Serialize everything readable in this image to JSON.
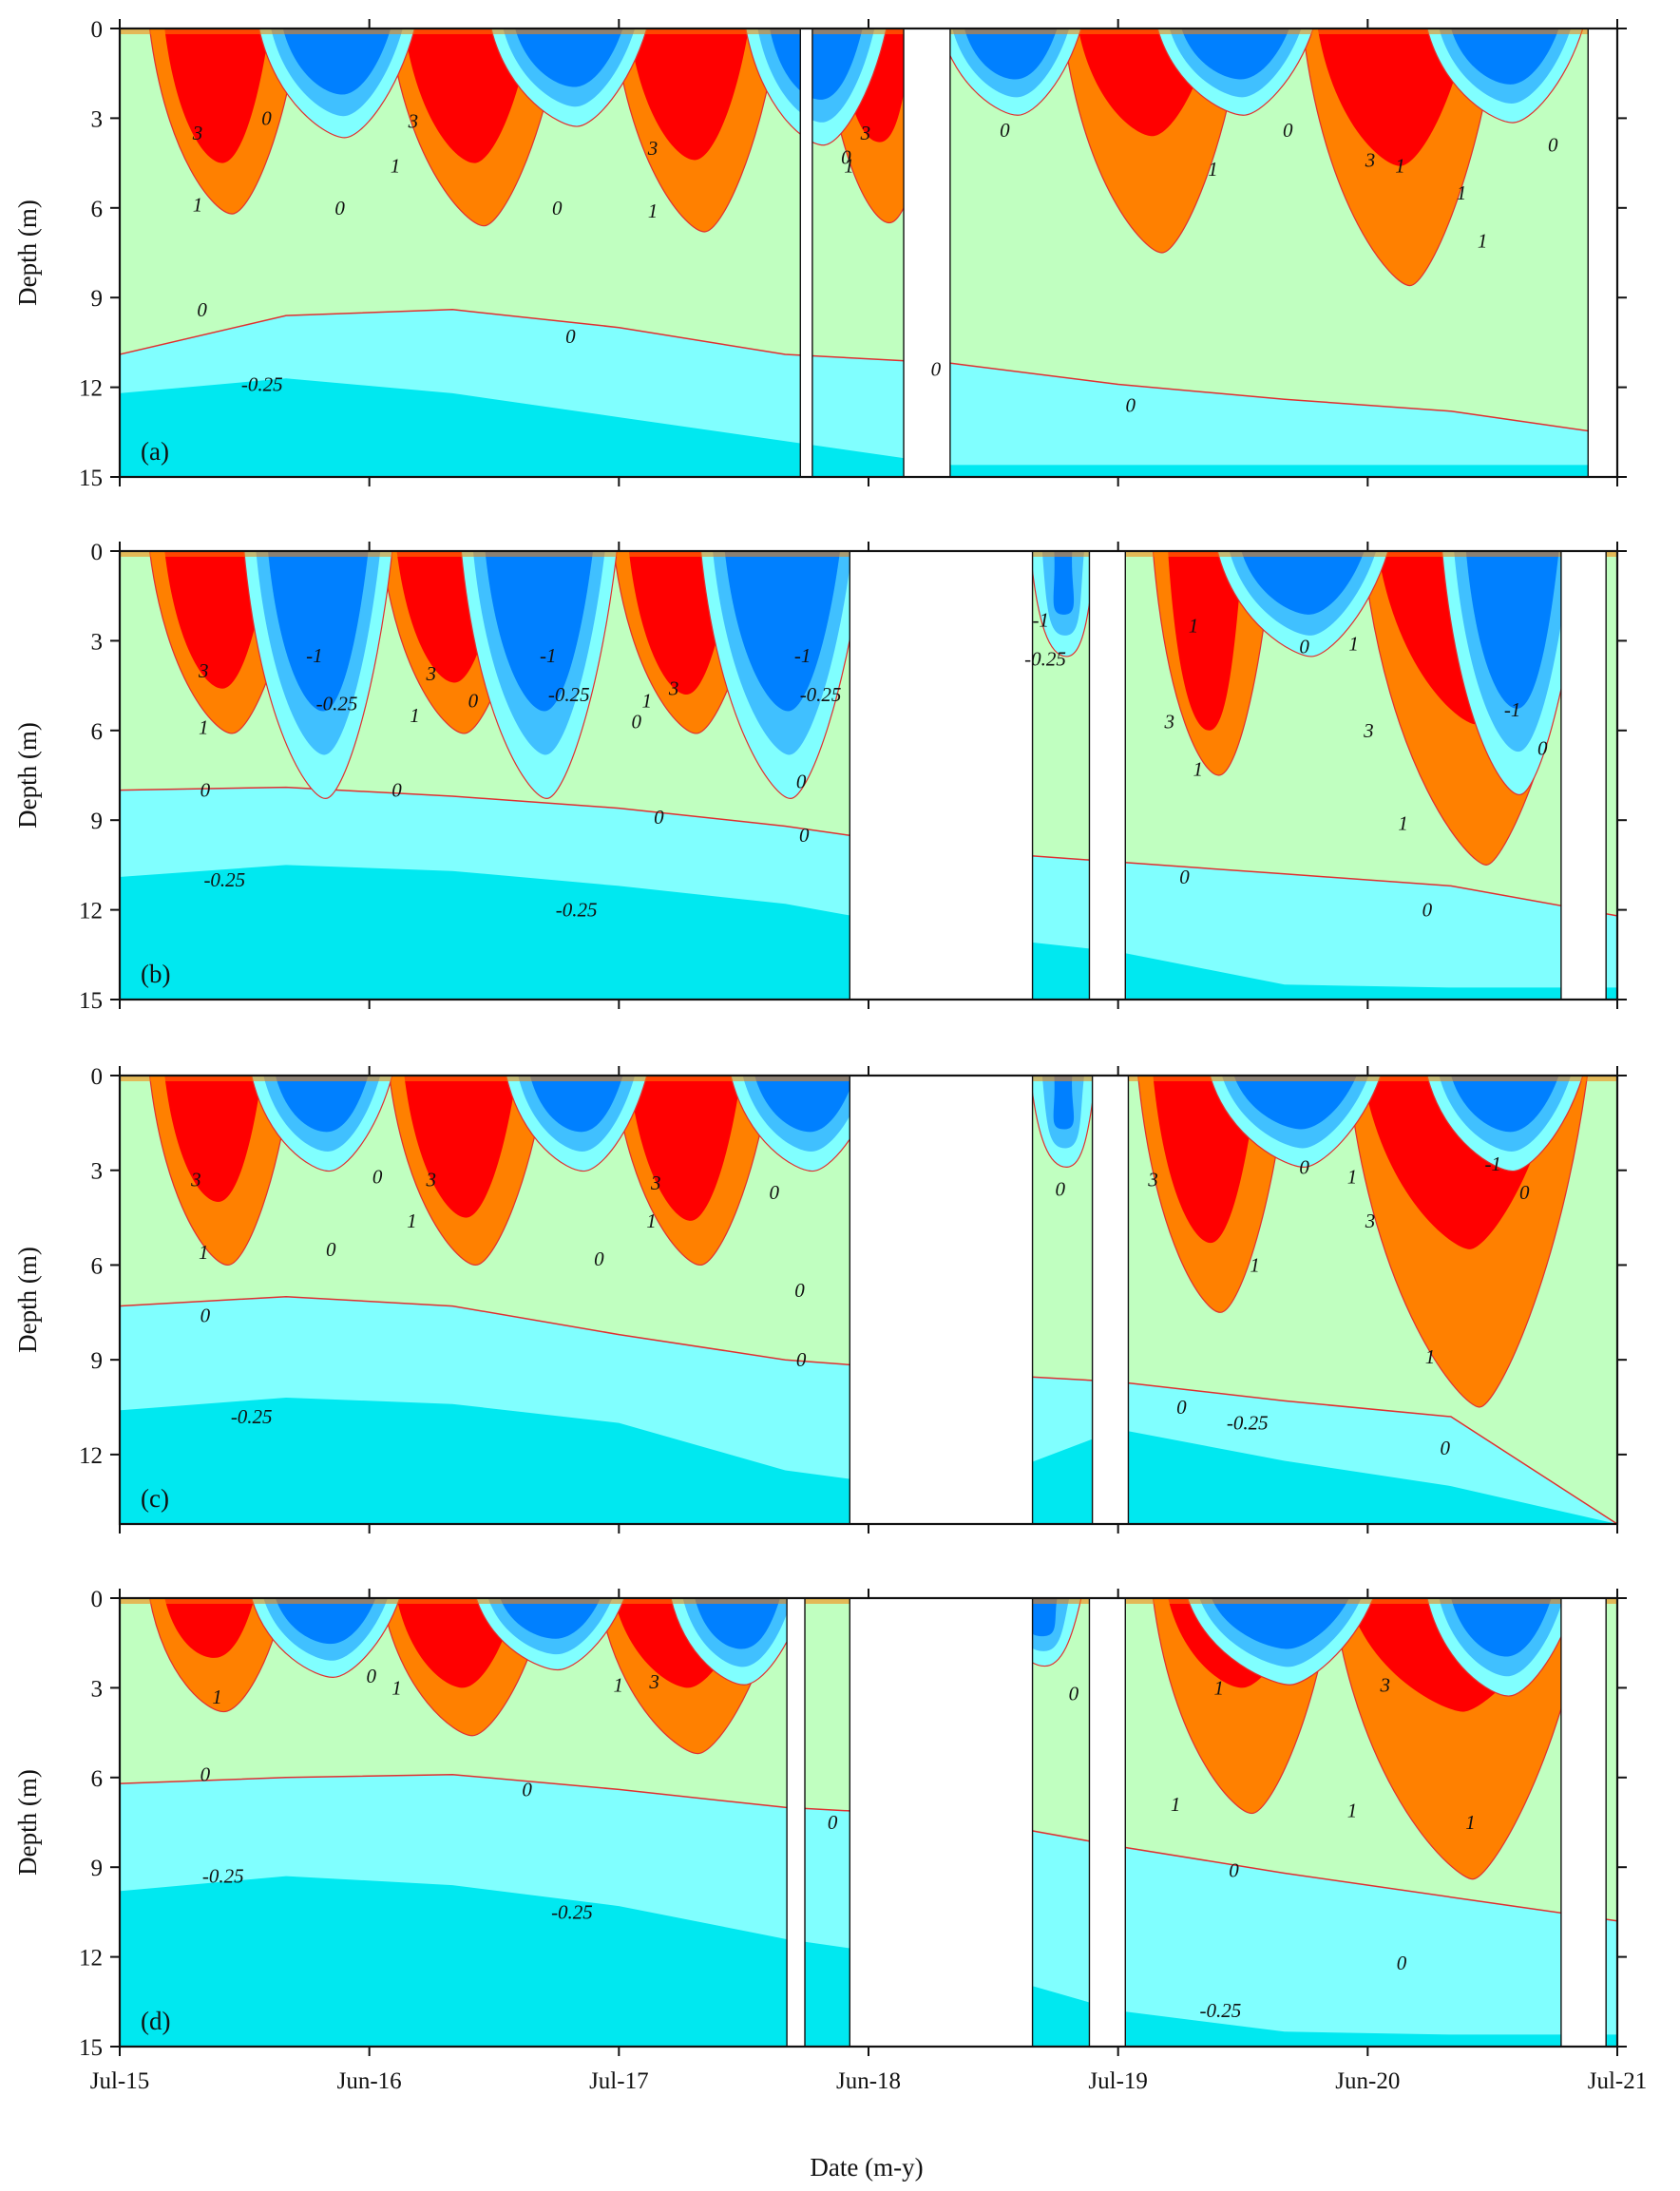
{
  "chart_data": {
    "type": "heatmap",
    "xlabel": "Date (m-y)",
    "ylabel": "Depth (m)",
    "x_ticks": [
      "Jul-15",
      "Jun-16",
      "Jul-17",
      "Jun-18",
      "Jul-19",
      "Jun-20",
      "Jul-21"
    ],
    "y_ticks_full": [
      "0",
      "3",
      "6",
      "9",
      "12",
      "15"
    ],
    "y_ticks_short": [
      "0",
      "3",
      "6",
      "9",
      "12"
    ],
    "ylim": [
      0,
      15
    ],
    "color_classes": [
      {
        "range": "> 3",
        "color": "#ff0000"
      },
      {
        "range": "1 – 3",
        "color": "#ff8000"
      },
      {
        "range": "0 – 1",
        "color": "#c0ffc0"
      },
      {
        "range": "-0.25 – 0",
        "color": "#80ffff"
      },
      {
        "range": "-0.5 – -0.25",
        "color": "#00e8f0"
      },
      {
        "range": "-1 – -0.5",
        "color": "#40c0ff"
      },
      {
        "range": "< -1",
        "color": "#0080ff"
      }
    ],
    "contour_levels": [
      3,
      1,
      0,
      -0.25,
      -1
    ],
    "contour_line_color": "#e03030",
    "panels": [
      {
        "tag": "(a)",
        "ymax": 15,
        "gaps": [
          [
            0.4545,
            0.4625
          ],
          [
            0.5235,
            0.5545
          ],
          [
            0.9805,
            1.0
          ]
        ],
        "bottom_zero_depth": [
          10.9,
          9.6,
          9.4,
          10.0,
          10.9,
          11.2,
          11.9,
          12.4,
          12.8,
          13.6
        ],
        "bottom_cold_depth": [
          12.2,
          11.7,
          12.2,
          13.0,
          13.8,
          14.6,
          14.6,
          14.6,
          14.6,
          14.6
        ],
        "warm_events": [
          {
            "x": 0.03,
            "w": 0.07,
            "d3": 4.5,
            "d1": 6.2
          },
          {
            "x": 0.19,
            "w": 0.085,
            "d3": 4.5,
            "d1": 6.6
          },
          {
            "x": 0.34,
            "w": 0.08,
            "d3": 4.4,
            "d1": 6.8
          },
          {
            "x": 0.48,
            "w": 0.05,
            "d3": 3.8,
            "d1": 6.5
          },
          {
            "x": 0.64,
            "w": 0.09,
            "d3": 3.6,
            "d1": 7.5
          },
          {
            "x": 0.8,
            "w": 0.1,
            "d3": 4.6,
            "d1": 8.6
          }
        ],
        "cold_events": [
          {
            "x": 0.105,
            "w": 0.08,
            "d": 2.6
          },
          {
            "x": 0.26,
            "w": 0.08,
            "d": 2.3
          },
          {
            "x": 0.43,
            "w": 0.07,
            "d": 2.8
          },
          {
            "x": 0.56,
            "w": 0.07,
            "d": 2.0
          },
          {
            "x": 0.705,
            "w": 0.08,
            "d": 2.0
          },
          {
            "x": 0.885,
            "w": 0.08,
            "d": 2.2
          }
        ],
        "contour_labels": [
          {
            "text": "3",
            "x": 0.052,
            "y": 3.5
          },
          {
            "text": "0",
            "x": 0.098,
            "y": 3.0
          },
          {
            "text": "1",
            "x": 0.052,
            "y": 5.9
          },
          {
            "text": "3",
            "x": 0.196,
            "y": 3.1
          },
          {
            "text": "1",
            "x": 0.184,
            "y": 4.6
          },
          {
            "text": "0",
            "x": 0.147,
            "y": 6.0
          },
          {
            "text": "0",
            "x": 0.292,
            "y": 6.0
          },
          {
            "text": "3",
            "x": 0.356,
            "y": 4.0
          },
          {
            "text": "1",
            "x": 0.356,
            "y": 6.1
          },
          {
            "text": "0",
            "x": 0.485,
            "y": 4.3
          },
          {
            "text": "3",
            "x": 0.498,
            "y": 3.5
          },
          {
            "text": "1",
            "x": 0.487,
            "y": 4.6
          },
          {
            "text": "0",
            "x": 0.591,
            "y": 3.4
          },
          {
            "text": "1",
            "x": 0.73,
            "y": 4.7
          },
          {
            "text": "3",
            "x": 0.835,
            "y": 4.4
          },
          {
            "text": "1",
            "x": 0.855,
            "y": 4.6
          },
          {
            "text": "0",
            "x": 0.78,
            "y": 3.4
          },
          {
            "text": "0",
            "x": 0.957,
            "y": 3.9
          },
          {
            "text": "1",
            "x": 0.91,
            "y": 7.1
          },
          {
            "text": "1",
            "x": 0.896,
            "y": 5.5
          },
          {
            "text": "0",
            "x": 0.055,
            "y": 9.4
          },
          {
            "text": "0",
            "x": 0.301,
            "y": 10.3
          },
          {
            "text": "-0.25",
            "x": 0.095,
            "y": 11.9
          },
          {
            "text": "0",
            "x": 0.545,
            "y": 11.4
          },
          {
            "text": "0",
            "x": 0.675,
            "y": 12.6
          }
        ]
      },
      {
        "tag": "(b)",
        "ymax": 15,
        "gaps": [
          [
            0.4875,
            0.6095
          ],
          [
            0.6475,
            0.6715
          ],
          [
            0.9625,
            0.9925
          ]
        ],
        "bottom_zero_depth": [
          8.0,
          7.9,
          8.2,
          8.6,
          9.2,
          10.0,
          10.4,
          10.8,
          11.2,
          12.2
        ],
        "bottom_cold_depth": [
          10.9,
          10.5,
          10.7,
          11.2,
          11.8,
          12.8,
          13.4,
          14.5,
          14.6,
          14.6
        ],
        "warm_events": [
          {
            "x": 0.03,
            "w": 0.07,
            "d3": 4.6,
            "d1": 6.1
          },
          {
            "x": 0.185,
            "w": 0.07,
            "d3": 4.4,
            "d1": 6.1
          },
          {
            "x": 0.34,
            "w": 0.07,
            "d3": 4.8,
            "d1": 6.1
          },
          {
            "x": 0.7,
            "w": 0.05,
            "d3": 6.0,
            "d1": 7.5
          },
          {
            "x": 0.84,
            "w": 0.12,
            "d3": 5.8,
            "d1": 10.5
          }
        ],
        "cold_events": [
          {
            "x": 0.095,
            "w": 0.075,
            "d": 6.3
          },
          {
            "x": 0.24,
            "w": 0.08,
            "d": 6.3
          },
          {
            "x": 0.4,
            "w": 0.085,
            "d": 6.3
          },
          {
            "x": 0.62,
            "w": 0.02,
            "d": 2.5
          },
          {
            "x": 0.745,
            "w": 0.09,
            "d": 2.5
          },
          {
            "x": 0.895,
            "w": 0.07,
            "d": 6.2
          }
        ],
        "contour_labels": [
          {
            "text": "3",
            "x": 0.056,
            "y": 4.0
          },
          {
            "text": "1",
            "x": 0.056,
            "y": 5.9
          },
          {
            "text": "-1",
            "x": 0.13,
            "y": 3.5
          },
          {
            "text": "-0.25",
            "x": 0.145,
            "y": 5.1
          },
          {
            "text": "3",
            "x": 0.208,
            "y": 4.1
          },
          {
            "text": "1",
            "x": 0.197,
            "y": 5.5
          },
          {
            "text": "0",
            "x": 0.236,
            "y": 5.0
          },
          {
            "text": "-1",
            "x": 0.286,
            "y": 3.5
          },
          {
            "text": "-0.25",
            "x": 0.3,
            "y": 4.8
          },
          {
            "text": "1",
            "x": 0.352,
            "y": 5.0
          },
          {
            "text": "3",
            "x": 0.37,
            "y": 4.6
          },
          {
            "text": "0",
            "x": 0.345,
            "y": 5.7
          },
          {
            "text": "-1",
            "x": 0.456,
            "y": 3.5
          },
          {
            "text": "-0.25",
            "x": 0.468,
            "y": 4.8
          },
          {
            "text": "0",
            "x": 0.455,
            "y": 7.7
          },
          {
            "text": "0",
            "x": 0.057,
            "y": 8.0
          },
          {
            "text": "0",
            "x": 0.185,
            "y": 8.0
          },
          {
            "text": "0",
            "x": 0.36,
            "y": 8.9
          },
          {
            "text": "0",
            "x": 0.457,
            "y": 9.5
          },
          {
            "text": "-0.25",
            "x": 0.07,
            "y": 11.0
          },
          {
            "text": "-0.25",
            "x": 0.305,
            "y": 12.0
          },
          {
            "text": "-1",
            "x": 0.615,
            "y": 2.3
          },
          {
            "text": "-0.25",
            "x": 0.618,
            "y": 3.6
          },
          {
            "text": "1",
            "x": 0.717,
            "y": 2.5
          },
          {
            "text": "0",
            "x": 0.791,
            "y": 3.2
          },
          {
            "text": "1",
            "x": 0.824,
            "y": 3.1
          },
          {
            "text": "3",
            "x": 0.701,
            "y": 5.7
          },
          {
            "text": "1",
            "x": 0.72,
            "y": 7.3
          },
          {
            "text": "3",
            "x": 0.834,
            "y": 6.0
          },
          {
            "text": "-1",
            "x": 0.93,
            "y": 5.3
          },
          {
            "text": "0",
            "x": 0.95,
            "y": 6.6
          },
          {
            "text": "1",
            "x": 0.857,
            "y": 9.1
          },
          {
            "text": "0",
            "x": 0.711,
            "y": 10.9
          },
          {
            "text": "0",
            "x": 0.873,
            "y": 12.0
          }
        ]
      },
      {
        "tag": "(c)",
        "ymax": 14.2,
        "gaps": [
          [
            0.4875,
            0.6095
          ],
          [
            0.6495,
            0.6735
          ]
        ],
        "bottom_zero_depth": [
          7.3,
          7.0,
          7.3,
          8.2,
          9.0,
          9.4,
          9.7,
          10.3,
          10.8,
          14.2
        ],
        "bottom_cold_depth": [
          10.6,
          10.2,
          10.4,
          11.0,
          12.5,
          13.2,
          11.2,
          12.2,
          13.0,
          14.2
        ],
        "warm_events": [
          {
            "x": 0.03,
            "w": 0.065,
            "d3": 4.0,
            "d1": 6.0
          },
          {
            "x": 0.19,
            "w": 0.075,
            "d3": 4.5,
            "d1": 6.0
          },
          {
            "x": 0.34,
            "w": 0.075,
            "d3": 4.6,
            "d1": 6.0
          },
          {
            "x": 0.69,
            "w": 0.07,
            "d3": 5.3,
            "d1": 7.5
          },
          {
            "x": 0.83,
            "w": 0.13,
            "d3": 5.5,
            "d1": 10.5
          }
        ],
        "cold_events": [
          {
            "x": 0.1,
            "w": 0.07,
            "d": 2.1
          },
          {
            "x": 0.27,
            "w": 0.07,
            "d": 2.1
          },
          {
            "x": 0.42,
            "w": 0.075,
            "d": 2.1
          },
          {
            "x": 0.62,
            "w": 0.02,
            "d": 2.0
          },
          {
            "x": 0.74,
            "w": 0.09,
            "d": 2.0
          },
          {
            "x": 0.885,
            "w": 0.08,
            "d": 2.1
          }
        ],
        "contour_labels": [
          {
            "text": "3",
            "x": 0.051,
            "y": 3.3
          },
          {
            "text": "1",
            "x": 0.056,
            "y": 5.6
          },
          {
            "text": "0",
            "x": 0.172,
            "y": 3.2
          },
          {
            "text": "3",
            "x": 0.208,
            "y": 3.3
          },
          {
            "text": "1",
            "x": 0.195,
            "y": 4.6
          },
          {
            "text": "0",
            "x": 0.141,
            "y": 5.5
          },
          {
            "text": "3",
            "x": 0.358,
            "y": 3.4
          },
          {
            "text": "1",
            "x": 0.355,
            "y": 4.6
          },
          {
            "text": "0",
            "x": 0.32,
            "y": 5.8
          },
          {
            "text": "0",
            "x": 0.437,
            "y": 3.7
          },
          {
            "text": "0",
            "x": 0.454,
            "y": 6.8
          },
          {
            "text": "0",
            "x": 0.455,
            "y": 9.0
          },
          {
            "text": "0",
            "x": 0.057,
            "y": 7.6
          },
          {
            "text": "-0.25",
            "x": 0.088,
            "y": 10.8
          },
          {
            "text": "0",
            "x": 0.628,
            "y": 3.6
          },
          {
            "text": "3",
            "x": 0.69,
            "y": 3.3
          },
          {
            "text": "0",
            "x": 0.791,
            "y": 2.9
          },
          {
            "text": "1",
            "x": 0.823,
            "y": 3.2
          },
          {
            "text": "3",
            "x": 0.835,
            "y": 4.6
          },
          {
            "text": "1",
            "x": 0.758,
            "y": 6.0
          },
          {
            "text": "1",
            "x": 0.875,
            "y": 8.9
          },
          {
            "text": "-1",
            "x": 0.917,
            "y": 2.8
          },
          {
            "text": "0",
            "x": 0.938,
            "y": 3.7
          },
          {
            "text": "0",
            "x": 0.709,
            "y": 10.5
          },
          {
            "text": "-0.25",
            "x": 0.753,
            "y": 11.0
          },
          {
            "text": "0",
            "x": 0.885,
            "y": 11.8
          }
        ]
      },
      {
        "tag": "(d)",
        "ymax": 15,
        "gaps": [
          [
            0.4455,
            0.4575
          ],
          [
            0.4875,
            0.6095
          ],
          [
            0.6475,
            0.6715
          ],
          [
            0.9625,
            0.9925
          ]
        ],
        "bottom_zero_depth": [
          6.2,
          6.0,
          5.9,
          6.4,
          7.0,
          7.3,
          8.3,
          9.2,
          10.0,
          10.8
        ],
        "bottom_cold_depth": [
          9.8,
          9.3,
          9.6,
          10.3,
          11.4,
          12.2,
          13.8,
          14.5,
          14.6,
          14.6
        ],
        "warm_events": [
          {
            "x": 0.03,
            "w": 0.06,
            "d3": 2.0,
            "d1": 3.8
          },
          {
            "x": 0.185,
            "w": 0.08,
            "d3": 3.0,
            "d1": 4.6
          },
          {
            "x": 0.33,
            "w": 0.09,
            "d3": 3.0,
            "d1": 5.2
          },
          {
            "x": 0.7,
            "w": 0.09,
            "d3": 3.0,
            "d1": 7.2
          },
          {
            "x": 0.82,
            "w": 0.14,
            "d3": 3.8,
            "d1": 9.4
          }
        ],
        "cold_events": [
          {
            "x": 0.1,
            "w": 0.075,
            "d": 1.8
          },
          {
            "x": 0.25,
            "w": 0.075,
            "d": 1.6
          },
          {
            "x": 0.38,
            "w": 0.065,
            "d": 2.0
          },
          {
            "x": 0.6,
            "w": 0.03,
            "d": 1.5
          },
          {
            "x": 0.725,
            "w": 0.1,
            "d": 2.0
          },
          {
            "x": 0.885,
            "w": 0.075,
            "d": 2.3
          }
        ],
        "contour_labels": [
          {
            "text": "1",
            "x": 0.065,
            "y": 3.3
          },
          {
            "text": "0",
            "x": 0.168,
            "y": 2.6
          },
          {
            "text": "1",
            "x": 0.185,
            "y": 3.0
          },
          {
            "text": "1",
            "x": 0.333,
            "y": 2.9
          },
          {
            "text": "3",
            "x": 0.357,
            "y": 2.8
          },
          {
            "text": "0",
            "x": 0.057,
            "y": 5.9
          },
          {
            "text": "0",
            "x": 0.272,
            "y": 6.4
          },
          {
            "text": "-0.25",
            "x": 0.069,
            "y": 9.3
          },
          {
            "text": "-0.25",
            "x": 0.302,
            "y": 10.5
          },
          {
            "text": "0",
            "x": 0.476,
            "y": 7.5
          },
          {
            "text": "0",
            "x": 0.637,
            "y": 3.2
          },
          {
            "text": "1",
            "x": 0.734,
            "y": 3.0
          },
          {
            "text": "3",
            "x": 0.845,
            "y": 2.9
          },
          {
            "text": "1",
            "x": 0.705,
            "y": 6.9
          },
          {
            "text": "1",
            "x": 0.823,
            "y": 7.1
          },
          {
            "text": "1",
            "x": 0.902,
            "y": 7.5
          },
          {
            "text": "0",
            "x": 0.744,
            "y": 9.1
          },
          {
            "text": "0",
            "x": 0.856,
            "y": 12.2
          },
          {
            "text": "-0.25",
            "x": 0.735,
            "y": 13.8
          }
        ]
      }
    ]
  }
}
